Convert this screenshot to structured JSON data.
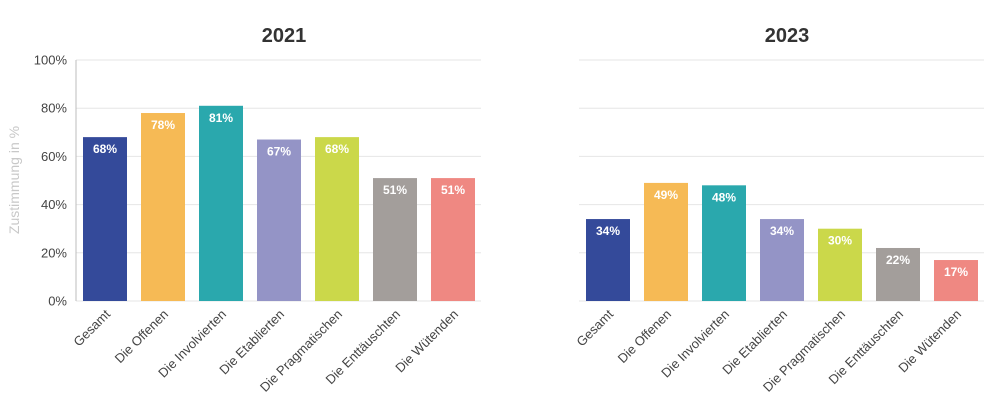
{
  "chart_data": [
    {
      "type": "bar",
      "title": "2021",
      "ylabel": "Zustimmung in %",
      "ylim": [
        0,
        100
      ],
      "yticks": [
        "0%",
        "20%",
        "40%",
        "60%",
        "80%",
        "100%"
      ],
      "grid": true,
      "categories": [
        "Gesamt",
        "Die Offenen",
        "Die Involvierten",
        "Die Etablierten",
        "Die Pragmatischen",
        "Die Enttäuschten",
        "Die Wütenden"
      ],
      "values": [
        68,
        78,
        81,
        67,
        68,
        51,
        51
      ],
      "value_labels": [
        "68%",
        "78%",
        "81%",
        "67%",
        "68%",
        "51%",
        "51%"
      ],
      "colors": [
        "#344a9a",
        "#f6ba55",
        "#2aa8ad",
        "#9494c6",
        "#cbd84a",
        "#a39e9b",
        "#ef8882"
      ]
    },
    {
      "type": "bar",
      "title": "2023",
      "ylabel": "",
      "ylim": [
        0,
        100
      ],
      "grid": true,
      "categories": [
        "Gesamt",
        "Die Offenen",
        "Die Involvierten",
        "Die Etablierten",
        "Die Pragmatischen",
        "Die Enttäuschten",
        "Die Wütenden"
      ],
      "values": [
        34,
        49,
        48,
        34,
        30,
        22,
        17
      ],
      "value_labels": [
        "34%",
        "49%",
        "48%",
        "34%",
        "30%",
        "22%",
        "17%"
      ],
      "colors": [
        "#344a9a",
        "#f6ba55",
        "#2aa8ad",
        "#9494c6",
        "#cbd84a",
        "#a39e9b",
        "#ef8882"
      ]
    }
  ]
}
